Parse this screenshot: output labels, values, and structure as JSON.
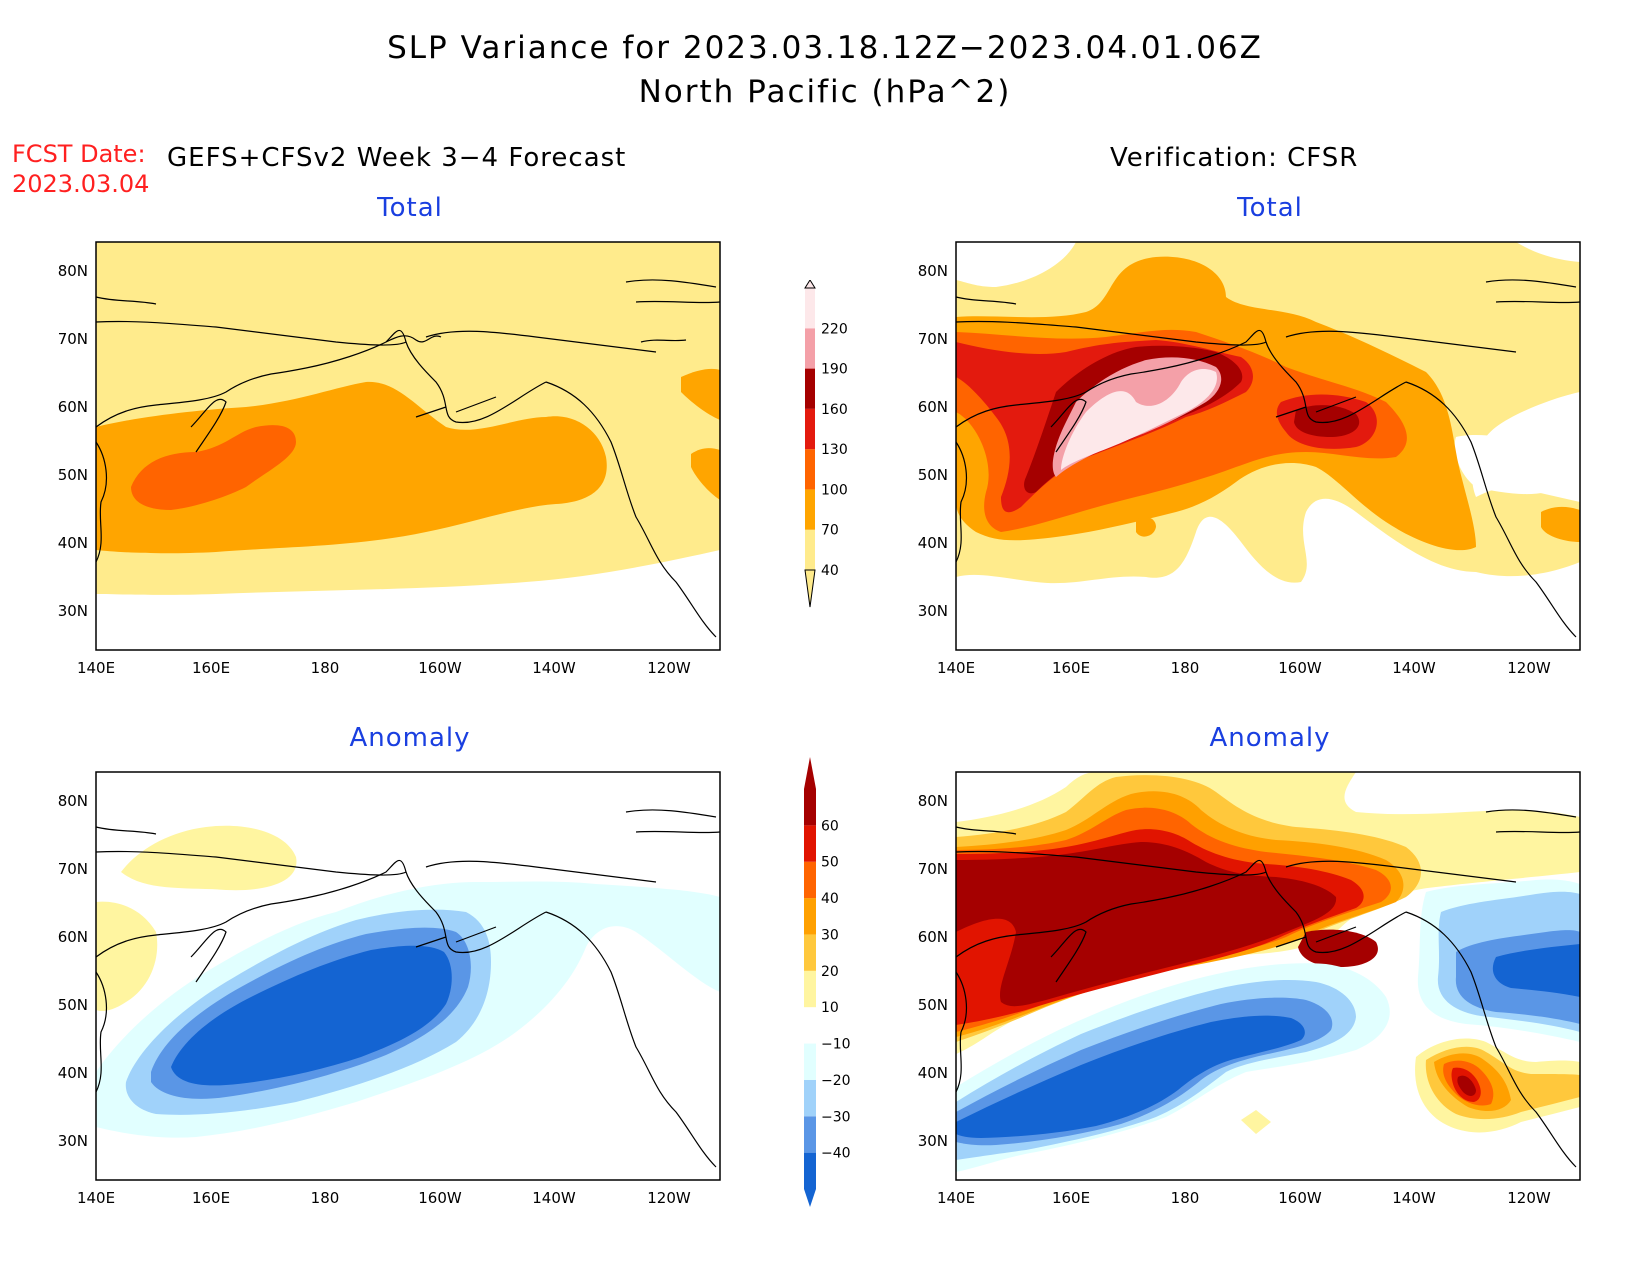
{
  "title": {
    "line1": "SLP Variance for 2023.03.18.12Z−2023.04.01.06Z",
    "line2": "North Pacific (hPa^2)"
  },
  "fcst": {
    "label": "FCST Date:",
    "date": "2023.03.04"
  },
  "headers": {
    "forecast": "GEFS+CFSv2 Week 3−4 Forecast",
    "verification": "Verification: CFSR"
  },
  "panel_titles": {
    "total": "Total",
    "anomaly": "Anomaly"
  },
  "axes": {
    "lat_labels": [
      "80N",
      "70N",
      "60N",
      "50N",
      "40N",
      "30N"
    ],
    "lon_labels": [
      "140E",
      "160E",
      "180",
      "160W",
      "140W",
      "120W"
    ]
  },
  "colorbar_total": {
    "labels": [
      "40",
      "70",
      "100",
      "130",
      "160",
      "190",
      "220"
    ],
    "colors": [
      "#ffeb8c",
      "#ffa500",
      "#ff6400",
      "#e31a0e",
      "#a50000",
      "#f4a0a8",
      "#fde8ea"
    ]
  },
  "colorbar_anomaly": {
    "labels": [
      "−40",
      "−30",
      "−20",
      "−10",
      "10",
      "20",
      "30",
      "40",
      "50",
      "60"
    ],
    "colors": [
      "#1464d2",
      "#5a96e6",
      "#a0d2fa",
      "#e1ffff",
      "#ffffff",
      "#fff5a0",
      "#ffc83c",
      "#ffa000",
      "#ff6400",
      "#e11400",
      "#a50000"
    ]
  },
  "shading_colors": {
    "t40": "#ffeb8c",
    "t70": "#ffa500",
    "t100": "#ff6400",
    "t130": "#e31a0e",
    "t160": "#a50000",
    "t190": "#f4a0a8",
    "t220": "#fde8ea",
    "aneg40": "#1464d2",
    "aneg30": "#5a96e6",
    "aneg20": "#a0d2fa",
    "aneg10": "#e1ffff",
    "apos10": "#fff5a0",
    "apos20": "#ffc83c",
    "apos30": "#ffa000",
    "apos40": "#ff6400",
    "apos50": "#e11400",
    "apos60": "#a50000"
  }
}
